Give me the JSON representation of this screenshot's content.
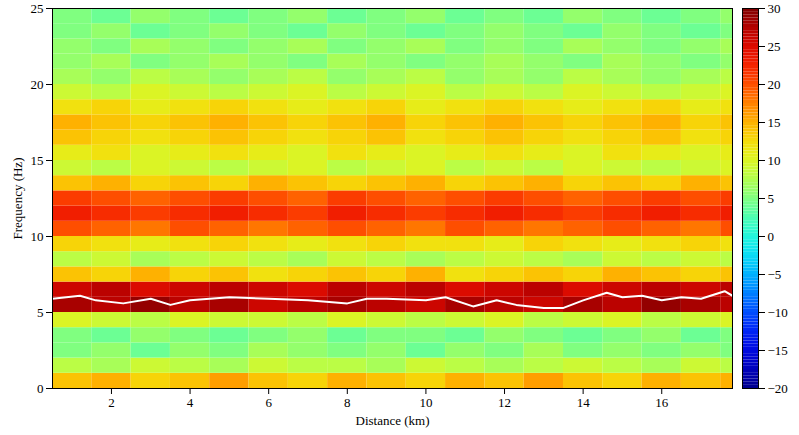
{
  "chart_data": {
    "type": "heatmap",
    "xlabel": "Distance (km)",
    "ylabel": "Frequency (Hz)",
    "xlim": [
      0.5,
      17.8
    ],
    "xticks": [
      2,
      4,
      6,
      8,
      10,
      12,
      14,
      16
    ],
    "ylim": [
      0,
      25
    ],
    "yticks": [
      0,
      5,
      10,
      15,
      20,
      25
    ],
    "cells": {
      "x_bins": [
        0.5,
        1.5,
        2.5,
        3.5,
        4.5,
        5.5,
        6.5,
        7.5,
        8.5,
        9.5,
        10.5,
        11.5,
        12.5,
        13.5,
        14.5,
        15.5,
        16.5,
        17.5,
        17.8
      ],
      "y_bins": [
        0,
        1,
        2,
        3,
        4,
        5,
        6,
        7,
        8,
        9,
        10,
        11,
        12,
        13,
        14,
        15,
        16,
        17,
        18,
        19,
        20,
        21,
        22,
        23,
        24,
        25
      ],
      "values": [
        [
          14,
          15,
          13,
          14,
          16,
          14,
          13,
          15,
          14,
          13,
          15,
          14,
          16,
          14,
          13,
          15,
          14,
          15
        ],
        [
          8,
          7,
          9,
          8,
          7,
          9,
          8,
          8,
          7,
          9,
          8,
          7,
          8,
          9,
          8,
          7,
          9,
          8
        ],
        [
          5,
          6,
          4,
          6,
          5,
          7,
          6,
          5,
          6,
          4,
          6,
          5,
          7,
          5,
          6,
          5,
          6,
          5
        ],
        [
          5,
          4,
          6,
          5,
          4,
          5,
          6,
          4,
          5,
          5,
          4,
          6,
          5,
          4,
          5,
          6,
          4,
          5
        ],
        [
          10,
          9,
          8,
          10,
          9,
          9,
          8,
          10,
          9,
          8,
          9,
          10,
          8,
          9,
          10,
          8,
          9,
          10
        ],
        [
          28,
          27,
          29,
          27,
          28,
          26,
          27,
          28,
          27,
          26,
          28,
          27,
          26,
          28,
          27,
          29,
          28,
          27
        ],
        [
          26,
          27,
          25,
          26,
          27,
          26,
          25,
          27,
          26,
          27,
          25,
          26,
          27,
          25,
          26,
          27,
          26,
          27
        ],
        [
          14,
          13,
          15,
          13,
          14,
          12,
          13,
          14,
          13,
          15,
          12,
          13,
          14,
          13,
          15,
          14,
          13,
          14
        ],
        [
          8,
          9,
          7,
          8,
          9,
          8,
          7,
          9,
          8,
          7,
          8,
          9,
          8,
          7,
          9,
          8,
          9,
          8
        ],
        [
          13,
          12,
          11,
          12,
          13,
          12,
          11,
          12,
          13,
          12,
          12,
          11,
          13,
          12,
          11,
          12,
          13,
          12
        ],
        [
          20,
          19,
          18,
          20,
          19,
          18,
          19,
          20,
          19,
          18,
          20,
          19,
          18,
          19,
          20,
          19,
          18,
          20
        ],
        [
          23,
          22,
          21,
          22,
          23,
          22,
          21,
          23,
          22,
          21,
          22,
          23,
          22,
          21,
          22,
          23,
          22,
          23
        ],
        [
          21,
          20,
          19,
          20,
          21,
          20,
          19,
          21,
          20,
          19,
          20,
          21,
          20,
          19,
          20,
          21,
          20,
          21
        ],
        [
          14,
          15,
          13,
          14,
          13,
          15,
          14,
          13,
          14,
          15,
          13,
          14,
          15,
          13,
          14,
          13,
          15,
          14
        ],
        [
          9,
          8,
          10,
          9,
          8,
          9,
          10,
          8,
          9,
          10,
          8,
          9,
          8,
          10,
          9,
          8,
          9,
          10
        ],
        [
          11,
          12,
          10,
          11,
          12,
          11,
          10,
          12,
          11,
          10,
          11,
          12,
          11,
          10,
          12,
          11,
          10,
          11
        ],
        [
          14,
          13,
          12,
          13,
          14,
          13,
          12,
          13,
          14,
          12,
          13,
          14,
          13,
          12,
          13,
          14,
          12,
          13
        ],
        [
          15,
          14,
          13,
          14,
          15,
          14,
          13,
          14,
          15,
          13,
          14,
          15,
          14,
          13,
          14,
          15,
          13,
          14
        ],
        [
          12,
          13,
          11,
          12,
          13,
          12,
          11,
          12,
          13,
          11,
          12,
          13,
          12,
          11,
          12,
          13,
          11,
          12
        ],
        [
          9,
          8,
          10,
          9,
          8,
          9,
          10,
          8,
          9,
          10,
          8,
          9,
          8,
          10,
          9,
          8,
          9,
          10
        ],
        [
          7,
          6,
          8,
          7,
          6,
          7,
          8,
          6,
          7,
          8,
          6,
          7,
          6,
          8,
          7,
          6,
          7,
          8
        ],
        [
          6,
          7,
          5,
          6,
          7,
          6,
          5,
          7,
          6,
          5,
          6,
          7,
          6,
          5,
          7,
          6,
          5,
          6
        ],
        [
          6,
          5,
          7,
          6,
          5,
          6,
          7,
          5,
          6,
          7,
          5,
          6,
          5,
          7,
          6,
          5,
          6,
          7
        ],
        [
          5,
          6,
          4,
          5,
          6,
          5,
          4,
          6,
          5,
          4,
          5,
          6,
          5,
          4,
          6,
          5,
          4,
          5
        ],
        [
          5,
          4,
          6,
          5,
          4,
          5,
          6,
          4,
          5,
          6,
          4,
          5,
          4,
          6,
          5,
          4,
          5,
          6
        ]
      ]
    },
    "colorbar": {
      "range": [
        -20,
        30
      ],
      "ticks": [
        -20,
        -15,
        -10,
        -5,
        0,
        5,
        10,
        15,
        20,
        25,
        30
      ]
    },
    "series": [
      {
        "type": "line",
        "color": "#ffffff",
        "x": [
          0.5,
          1.2,
          1.6,
          2.3,
          3.0,
          3.5,
          4.0,
          5.0,
          6.0,
          7.0,
          8.0,
          8.5,
          9.0,
          10.0,
          10.5,
          11.2,
          11.8,
          12.3,
          13.0,
          13.5,
          14.0,
          14.6,
          15.0,
          15.5,
          16.0,
          16.5,
          17.0,
          17.6,
          17.8
        ],
        "values": [
          5.9,
          6.1,
          5.8,
          5.6,
          5.9,
          5.5,
          5.8,
          6.0,
          5.9,
          5.8,
          5.6,
          5.9,
          5.9,
          5.8,
          6.0,
          5.4,
          5.8,
          5.5,
          5.3,
          5.3,
          5.8,
          6.3,
          6.0,
          6.1,
          5.8,
          6.0,
          5.9,
          6.4,
          6.1
        ]
      }
    ]
  }
}
